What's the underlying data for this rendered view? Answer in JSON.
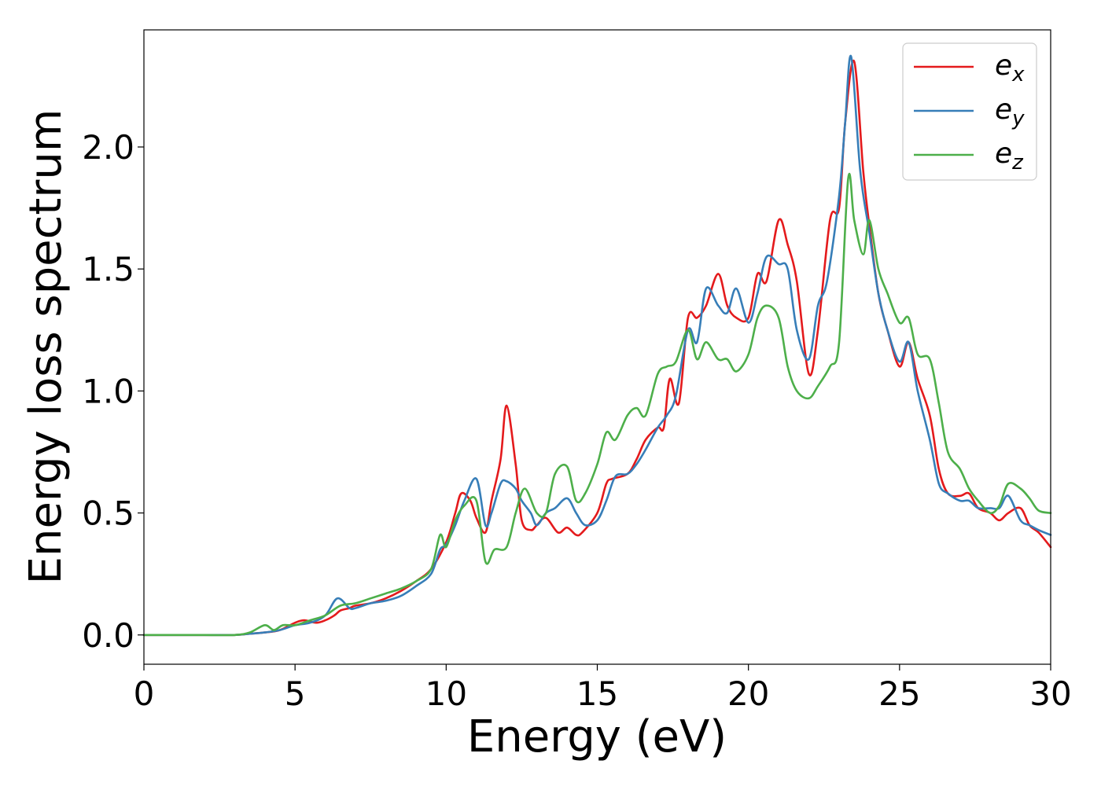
{
  "chart_data": {
    "type": "line",
    "xlabel": "Energy (eV)",
    "ylabel": "Energy loss spectrum",
    "xlim": [
      0,
      30
    ],
    "ylim": [
      -0.12,
      2.48
    ],
    "grid": false,
    "legend_position": "top-right",
    "x_ticks": [
      0,
      5,
      10,
      15,
      20,
      25,
      30
    ],
    "x_tick_labels": [
      "0",
      "5",
      "10",
      "15",
      "20",
      "25",
      "30"
    ],
    "y_ticks": [
      0.0,
      0.5,
      1.0,
      1.5,
      2.0
    ],
    "y_tick_labels": [
      "0.0",
      "0.5",
      "1.0",
      "1.5",
      "2.0"
    ],
    "series": [
      {
        "name": "e_x",
        "legend_base": "e",
        "legend_sub": "x",
        "color": "#e41a1c",
        "x": [
          0,
          1,
          2,
          3,
          3.5,
          4,
          4.5,
          5,
          5.3,
          5.7,
          6,
          6.3,
          6.5,
          6.8,
          7,
          7.5,
          8,
          8.5,
          9,
          9.5,
          10,
          10.3,
          10.5,
          10.8,
          11,
          11.3,
          11.5,
          11.8,
          12,
          12.3,
          12.5,
          12.8,
          13,
          13.3,
          13.7,
          14,
          14.3,
          14.5,
          15,
          15.3,
          15.5,
          16,
          16.3,
          16.6,
          17,
          17.2,
          17.4,
          17.7,
          18,
          18.3,
          18.6,
          19,
          19.3,
          19.6,
          20,
          20.3,
          20.6,
          21,
          21.3,
          21.6,
          22,
          22.3,
          22.7,
          23,
          23.2,
          23.5,
          23.8,
          24,
          24.3,
          24.6,
          25,
          25.3,
          25.6,
          26,
          26.3,
          26.6,
          27,
          27.3,
          27.6,
          28,
          28.3,
          28.6,
          29,
          29.3,
          29.6,
          30
        ],
        "y": [
          0,
          0,
          0,
          0,
          0.005,
          0.01,
          0.02,
          0.05,
          0.06,
          0.05,
          0.06,
          0.08,
          0.1,
          0.11,
          0.12,
          0.13,
          0.15,
          0.18,
          0.22,
          0.27,
          0.38,
          0.5,
          0.58,
          0.55,
          0.48,
          0.42,
          0.55,
          0.72,
          0.94,
          0.7,
          0.47,
          0.43,
          0.45,
          0.48,
          0.42,
          0.44,
          0.41,
          0.42,
          0.5,
          0.62,
          0.64,
          0.66,
          0.72,
          0.8,
          0.85,
          0.85,
          1.05,
          0.95,
          1.3,
          1.3,
          1.35,
          1.48,
          1.35,
          1.3,
          1.3,
          1.48,
          1.45,
          1.7,
          1.6,
          1.45,
          1.07,
          1.25,
          1.7,
          1.75,
          2.1,
          2.35,
          1.9,
          1.68,
          1.4,
          1.25,
          1.1,
          1.2,
          1.05,
          0.9,
          0.68,
          0.58,
          0.57,
          0.58,
          0.52,
          0.5,
          0.47,
          0.5,
          0.52,
          0.45,
          0.42,
          0.36
        ]
      },
      {
        "name": "e_y",
        "legend_base": "e",
        "legend_sub": "y",
        "color": "#377eb8",
        "x": [
          0,
          1,
          2,
          3,
          3.5,
          4,
          4.5,
          5,
          5.5,
          6,
          6.4,
          6.8,
          7,
          7.5,
          8,
          8.5,
          9,
          9.5,
          9.8,
          10,
          10.3,
          10.6,
          11,
          11.3,
          11.5,
          11.8,
          12,
          12.3,
          12.5,
          12.8,
          13,
          13.3,
          13.6,
          14,
          14.3,
          14.6,
          15,
          15.3,
          15.6,
          16,
          16.3,
          16.6,
          17,
          17.3,
          17.6,
          18,
          18.3,
          18.6,
          19,
          19.3,
          19.6,
          20,
          20.3,
          20.6,
          21,
          21.3,
          21.6,
          22,
          22.3,
          22.6,
          23,
          23.2,
          23.4,
          23.7,
          24,
          24.3,
          24.6,
          25,
          25.3,
          25.6,
          26,
          26.3,
          26.6,
          27,
          27.3,
          27.6,
          28,
          28.3,
          28.6,
          29,
          29.3,
          29.6,
          30
        ],
        "y": [
          0,
          0,
          0,
          0,
          0.005,
          0.01,
          0.02,
          0.04,
          0.05,
          0.08,
          0.15,
          0.11,
          0.11,
          0.13,
          0.14,
          0.16,
          0.2,
          0.25,
          0.35,
          0.37,
          0.45,
          0.55,
          0.64,
          0.45,
          0.5,
          0.62,
          0.63,
          0.6,
          0.55,
          0.5,
          0.45,
          0.5,
          0.52,
          0.56,
          0.5,
          0.45,
          0.47,
          0.55,
          0.65,
          0.66,
          0.7,
          0.76,
          0.85,
          0.9,
          0.98,
          1.25,
          1.2,
          1.42,
          1.35,
          1.32,
          1.42,
          1.28,
          1.4,
          1.55,
          1.52,
          1.5,
          1.25,
          1.13,
          1.35,
          1.45,
          1.8,
          2.1,
          2.37,
          1.9,
          1.65,
          1.4,
          1.25,
          1.12,
          1.2,
          1.0,
          0.8,
          0.62,
          0.58,
          0.55,
          0.55,
          0.52,
          0.52,
          0.52,
          0.57,
          0.47,
          0.45,
          0.43,
          0.41
        ]
      },
      {
        "name": "e_z",
        "legend_base": "e",
        "legend_sub": "z",
        "color": "#4daf4a",
        "x": [
          0,
          1,
          2,
          3,
          3.5,
          4,
          4.3,
          4.6,
          5,
          5.5,
          6,
          6.5,
          7,
          7.5,
          8,
          8.5,
          9,
          9.5,
          9.8,
          10,
          10.3,
          10.6,
          11,
          11.3,
          11.6,
          12,
          12.3,
          12.6,
          13,
          13.3,
          13.6,
          14,
          14.3,
          14.6,
          15,
          15.3,
          15.6,
          16,
          16.3,
          16.6,
          17,
          17.3,
          17.6,
          18,
          18.3,
          18.6,
          19,
          19.3,
          19.6,
          20,
          20.3,
          20.6,
          21,
          21.3,
          21.6,
          22,
          22.3,
          22.7,
          23,
          23.3,
          23.5,
          23.8,
          24,
          24.3,
          24.6,
          25,
          25.3,
          25.6,
          26,
          26.3,
          26.6,
          27,
          27.3,
          27.6,
          28,
          28.3,
          28.6,
          29,
          29.3,
          29.6,
          30
        ],
        "y": [
          0,
          0,
          0,
          0,
          0.01,
          0.04,
          0.02,
          0.04,
          0.04,
          0.06,
          0.08,
          0.12,
          0.13,
          0.15,
          0.17,
          0.19,
          0.22,
          0.27,
          0.41,
          0.36,
          0.47,
          0.53,
          0.55,
          0.3,
          0.35,
          0.36,
          0.5,
          0.6,
          0.5,
          0.5,
          0.66,
          0.69,
          0.55,
          0.58,
          0.7,
          0.83,
          0.8,
          0.9,
          0.93,
          0.9,
          1.07,
          1.1,
          1.12,
          1.25,
          1.13,
          1.2,
          1.13,
          1.13,
          1.08,
          1.15,
          1.3,
          1.35,
          1.3,
          1.1,
          1.0,
          0.97,
          1.02,
          1.1,
          1.2,
          1.87,
          1.7,
          1.56,
          1.7,
          1.5,
          1.4,
          1.28,
          1.3,
          1.15,
          1.13,
          0.95,
          0.75,
          0.68,
          0.6,
          0.55,
          0.5,
          0.53,
          0.62,
          0.6,
          0.56,
          0.51,
          0.5
        ]
      }
    ]
  }
}
